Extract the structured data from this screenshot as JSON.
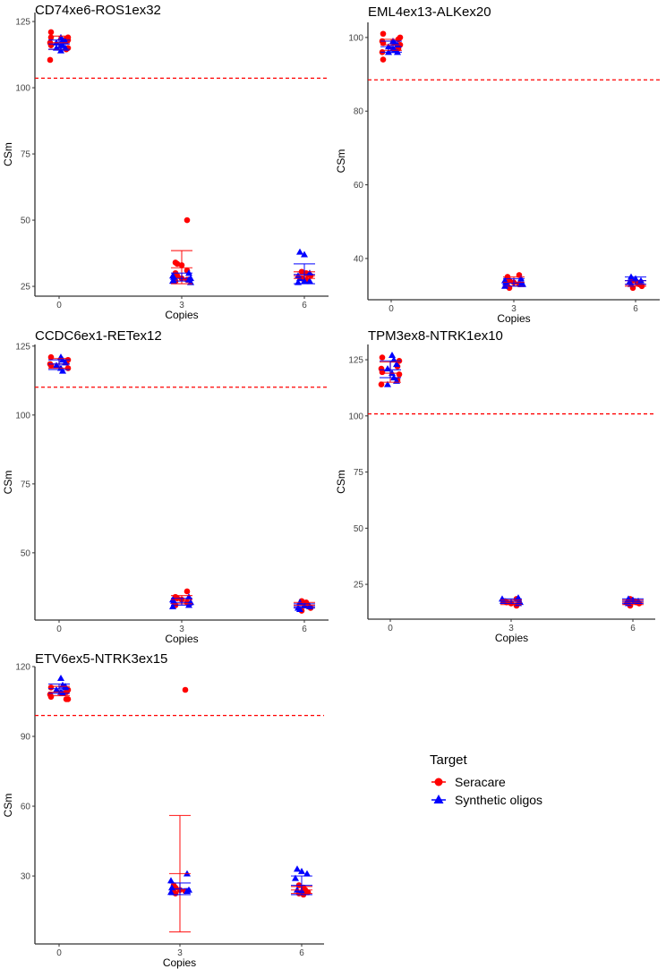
{
  "chart_data": {
    "type": "scatter",
    "colors": {
      "Seracare": "#ff0000",
      "Synthetic oligos": "#0000ff",
      "threshold": "#ff0000"
    },
    "legend": {
      "title": "Target",
      "entries": [
        "Seracare",
        "Synthetic oligos"
      ],
      "placement": "bottom-right"
    },
    "xlabel": "Copies",
    "ylabel": "CSm",
    "categories": [
      "0",
      "3",
      "6"
    ],
    "panels": [
      {
        "title": "CD74xe6-ROS1ex32",
        "ylim": [
          21.3,
          128.4
        ],
        "yticks": [
          25,
          50,
          75,
          100,
          125
        ],
        "threshold": 103.6,
        "groups": [
          {
            "Seracare": {
              "points": [
                121,
                119,
                118.5,
                117,
                116,
                115,
                114.5,
                110.5,
                119,
                118
              ],
              "mean": 117,
              "lo": 114.5,
              "hi": 119.5
            },
            "Synthetic oligos": {
              "points": [
                119,
                118,
                117.5,
                117,
                116,
                116,
                115,
                115,
                114
              ],
              "mean": 116.5,
              "lo": 114.5,
              "hi": 118
            }
          },
          {
            "Seracare": {
              "points": [
                50,
                34,
                33.5,
                33,
                31,
                30,
                29,
                28,
                27.5,
                27
              ],
              "mean": 32,
              "lo": 26,
              "hi": 38.5
            },
            "Synthetic oligos": {
              "points": [
                30,
                29,
                28.5,
                28,
                27.5,
                27,
                27,
                26.5
              ],
              "mean": 28,
              "lo": 27,
              "hi": 30
            }
          },
          {
            "Seracare": {
              "points": [
                30.5,
                30,
                29.5,
                29,
                28,
                27.5,
                27
              ],
              "mean": 29,
              "lo": 28,
              "hi": 30.5
            },
            "Synthetic oligos": {
              "points": [
                38,
                37,
                30,
                29,
                28,
                27,
                27,
                26.5
              ],
              "mean": 29.5,
              "lo": 26,
              "hi": 33.5
            }
          }
        ]
      },
      {
        "title": "EML4ex13-ALKex20",
        "ylim": [
          28.8,
          104.1
        ],
        "yticks": [
          40,
          60,
          80,
          100
        ],
        "threshold": 88.5,
        "groups": [
          {
            "Seracare": {
              "points": [
                101,
                100,
                99.5,
                99,
                98.5,
                98,
                97,
                96,
                94
              ],
              "mean": 98,
              "lo": 96.5,
              "hi": 99.5
            },
            "Synthetic oligos": {
              "points": [
                99,
                98.5,
                98,
                97.5,
                97,
                96.5,
                96,
                96
              ],
              "mean": 97.5,
              "lo": 96,
              "hi": 99
            }
          },
          {
            "Seracare": {
              "points": [
                35.5,
                35,
                34,
                33.5,
                33,
                32.5,
                32
              ],
              "mean": 33.5,
              "lo": 32.5,
              "hi": 35
            },
            "Synthetic oligos": {
              "points": [
                34.5,
                34,
                33.5,
                33,
                33,
                32.5
              ],
              "mean": 33.3,
              "lo": 32.5,
              "hi": 34.5
            }
          },
          {
            "Seracare": {
              "points": [
                34,
                33.5,
                33,
                32.5,
                32
              ],
              "mean": 33,
              "lo": 32.5,
              "hi": 34
            },
            "Synthetic oligos": {
              "points": [
                35,
                34.5,
                34,
                33.5,
                33
              ],
              "mean": 34,
              "lo": 33,
              "hi": 35
            }
          }
        ]
      },
      {
        "title": "CCDC6ex1-RETex12",
        "ylim": [
          25.6,
          125.6
        ],
        "yticks": [
          50,
          75,
          100,
          125
        ],
        "threshold": 110.1,
        "groups": [
          {
            "Seracare": {
              "points": [
                121,
                120,
                119,
                118.5,
                118,
                117
              ],
              "mean": 118.5,
              "lo": 117,
              "hi": 120.5
            },
            "Synthetic oligos": {
              "points": [
                121,
                120,
                119,
                118,
                117,
                116
              ],
              "mean": 118.5,
              "lo": 116.5,
              "hi": 120
            }
          },
          {
            "Seracare": {
              "points": [
                36,
                34,
                33.5,
                33,
                32,
                31
              ],
              "mean": 33,
              "lo": 31.5,
              "hi": 34.5
            },
            "Synthetic oligos": {
              "points": [
                34,
                33,
                32.5,
                32,
                31,
                30.5
              ],
              "mean": 32,
              "lo": 31,
              "hi": 33.5
            }
          },
          {
            "Seracare": {
              "points": [
                32.5,
                32,
                31,
                30,
                29
              ],
              "mean": 31,
              "lo": 30,
              "hi": 32
            },
            "Synthetic oligos": {
              "points": [
                32,
                31,
                30.5,
                30,
                29.5
              ],
              "mean": 30.5,
              "lo": 30,
              "hi": 31.5
            }
          }
        ]
      },
      {
        "title": "TPM3ex8-NTRK1ex10",
        "ylim": [
          9.5,
          131.8
        ],
        "yticks": [
          25,
          50,
          75,
          100,
          125
        ],
        "threshold": 100.9,
        "groups": [
          {
            "Seracare": {
              "points": [
                126,
                124.5,
                122,
                121,
                119.5,
                118.5,
                116,
                114
              ],
              "mean": 119,
              "lo": 115,
              "hi": 124
            },
            "Synthetic oligos": {
              "points": [
                127,
                125,
                123,
                121,
                119,
                117,
                115.5,
                114
              ],
              "mean": 120.5,
              "lo": 117,
              "hi": 124.5
            }
          },
          {
            "Seracare": {
              "points": [
                18.5,
                17.5,
                17,
                16.5,
                15.5
              ],
              "mean": 17,
              "lo": 16,
              "hi": 18
            },
            "Synthetic oligos": {
              "points": [
                19,
                18.5,
                17.5,
                17,
                16.5
              ],
              "mean": 17.5,
              "lo": 16.5,
              "hi": 18.5
            }
          },
          {
            "Seracare": {
              "points": [
                18.5,
                17.5,
                17,
                16.5,
                15.5
              ],
              "mean": 17,
              "lo": 16,
              "hi": 18
            },
            "Synthetic oligos": {
              "points": [
                18.5,
                18,
                17.5,
                17,
                16.5
              ],
              "mean": 17.5,
              "lo": 16.5,
              "hi": 18.5
            }
          }
        ]
      },
      {
        "title": "ETV6ex5-NTRK3ex15",
        "ylim": [
          0.8,
          120
        ],
        "yticks": [
          30,
          60,
          90,
          120
        ],
        "threshold": 99,
        "groups": [
          {
            "Seracare": {
              "points": [
                111,
                110,
                109,
                108,
                107,
                106,
                106
              ],
              "mean": 109,
              "lo": 107.5,
              "hi": 111.5
            },
            "Synthetic oligos": {
              "points": [
                115,
                112,
                111,
                110,
                109,
                108.5,
                111.5
              ],
              "mean": 110.5,
              "lo": 108.5,
              "hi": 112.5
            }
          },
          {
            "Seracare": {
              "points": [
                110,
                26,
                25,
                24,
                23.5,
                23,
                22.5
              ],
              "mean": 31,
              "lo": 6,
              "hi": 56
            },
            "Synthetic oligos": {
              "points": [
                31,
                28,
                25,
                24,
                23.5,
                23
              ],
              "mean": 24.5,
              "lo": 22,
              "hi": 27
            }
          },
          {
            "Seracare": {
              "points": [
                26,
                25,
                24,
                23,
                22.5,
                22
              ],
              "mean": 24,
              "lo": 22.5,
              "hi": 25.5
            },
            "Synthetic oligos": {
              "points": [
                33,
                32,
                31,
                29,
                24,
                23.5
              ],
              "mean": 26,
              "lo": 22,
              "hi": 30
            }
          }
        ]
      }
    ]
  }
}
